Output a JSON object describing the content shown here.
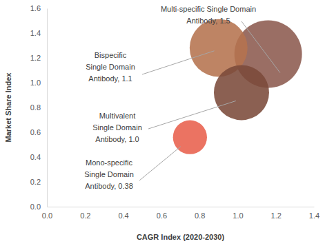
{
  "chart_data": {
    "type": "bubble",
    "x_label": "CAGR Index (2020-2030)",
    "y_label": "Market Share Index",
    "x": [
      1.16,
      0.9,
      1.02,
      0.75
    ],
    "values": [
      1.23,
      1.28,
      0.92,
      0.56
    ],
    "sizes": [
      1.5,
      1.1,
      1.0,
      0.38
    ],
    "labels": [
      [
        "Multi-specific Single Domain",
        "Antibody, 1.5"
      ],
      [
        "Bispecific",
        "Single Domain",
        "Antibody, 1.1"
      ],
      [
        "Multivalent",
        "Single Domain",
        "Antibody, 1.0"
      ],
      [
        "Mono-specific",
        "Single Domain",
        "Antibody, 0.38"
      ]
    ],
    "colors": [
      "#8c5a4e",
      "#b5734e",
      "#7b4a3a",
      "#e8604c"
    ],
    "xlim": [
      0,
      1.4
    ],
    "xticks": [
      {
        "value": 0,
        "label": "0.0"
      },
      0.2,
      0.4,
      0.6,
      0.8,
      {
        "value": 1,
        "label": "1.0"
      },
      1.2,
      1.4
    ],
    "ylim": [
      0,
      1.6
    ],
    "yticks": [
      {
        "value": 0,
        "label": "0.0"
      },
      0.2,
      0.4,
      0.6,
      0.8,
      {
        "value": 1,
        "label": "1.0"
      },
      1.2,
      1.4,
      1.6
    ],
    "grid": false
  }
}
